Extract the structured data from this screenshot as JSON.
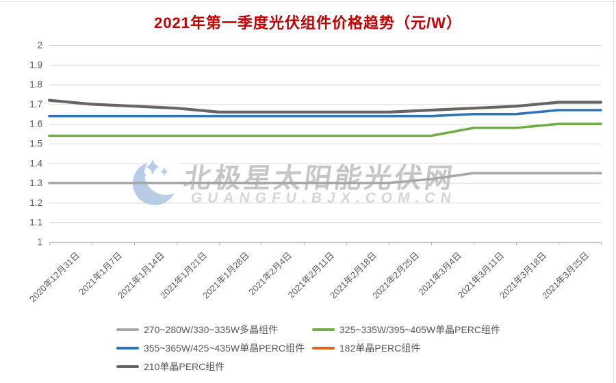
{
  "title": "2021年第一季度光伏组件价格趋势（元/W）",
  "title_color": "#c00000",
  "watermark": {
    "line1": "北极星太阳能光伏网",
    "line2": "GUANGFU.BJX.COM.CN",
    "logo_color": "#b7cce6"
  },
  "y_axis": {
    "labels": [
      "2",
      "1.9",
      "1.8",
      "1.7",
      "1.6",
      "1.5",
      "1.4",
      "1.3",
      "1.2",
      "1.1",
      "1"
    ],
    "label_color": "#595959"
  },
  "x_axis": {
    "label_color": "#595959",
    "axis_color": "#bfbfbf",
    "grid_color": "#d9d9d9"
  },
  "chart_data": {
    "type": "line",
    "title": "2021年第一季度光伏组件价格趋势（元/W）",
    "categories": [
      "2020年12月31日",
      "2021年1月7日",
      "2021年1月14日",
      "2021年1月21日",
      "2021年1月28日",
      "2021年2月4日",
      "2021年2月11日",
      "2021年2月18日",
      "2021年2月25日",
      "2021年3月4日",
      "2021年3月11日",
      "2021年3月18日",
      "2021年3月25日"
    ],
    "xlabel": "",
    "ylabel": "",
    "ylim": [
      1,
      2
    ],
    "ytick_step": 0.1,
    "grid": true,
    "legend_position": "bottom",
    "series": [
      {
        "name": "270~280W/330~335W多晶组件",
        "color": "#a8a8a8",
        "values": [
          1.3,
          1.3,
          1.3,
          1.3,
          1.3,
          1.3,
          1.3,
          1.3,
          1.3,
          1.32,
          1.35,
          1.35,
          1.35
        ]
      },
      {
        "name": "325~335W/395~405W单晶PERC组件",
        "color": "#70ad47",
        "values": [
          1.54,
          1.54,
          1.54,
          1.54,
          1.54,
          1.54,
          1.54,
          1.54,
          1.54,
          1.54,
          1.58,
          1.58,
          1.6
        ]
      },
      {
        "name": "355~365W/425~435W单晶PERC组件",
        "color": "#2e75b6",
        "values": [
          1.64,
          1.64,
          1.64,
          1.64,
          1.64,
          1.64,
          1.64,
          1.64,
          1.64,
          1.64,
          1.65,
          1.65,
          1.67
        ]
      },
      {
        "name": "182单晶PERC组件",
        "color": "#d9661e",
        "values": []
      },
      {
        "name": "210单晶PERC组件",
        "color": "#686562",
        "values": [
          1.72,
          1.7,
          1.69,
          1.68,
          1.66,
          1.66,
          1.66,
          1.66,
          1.66,
          1.67,
          1.68,
          1.69,
          1.71
        ]
      }
    ]
  }
}
